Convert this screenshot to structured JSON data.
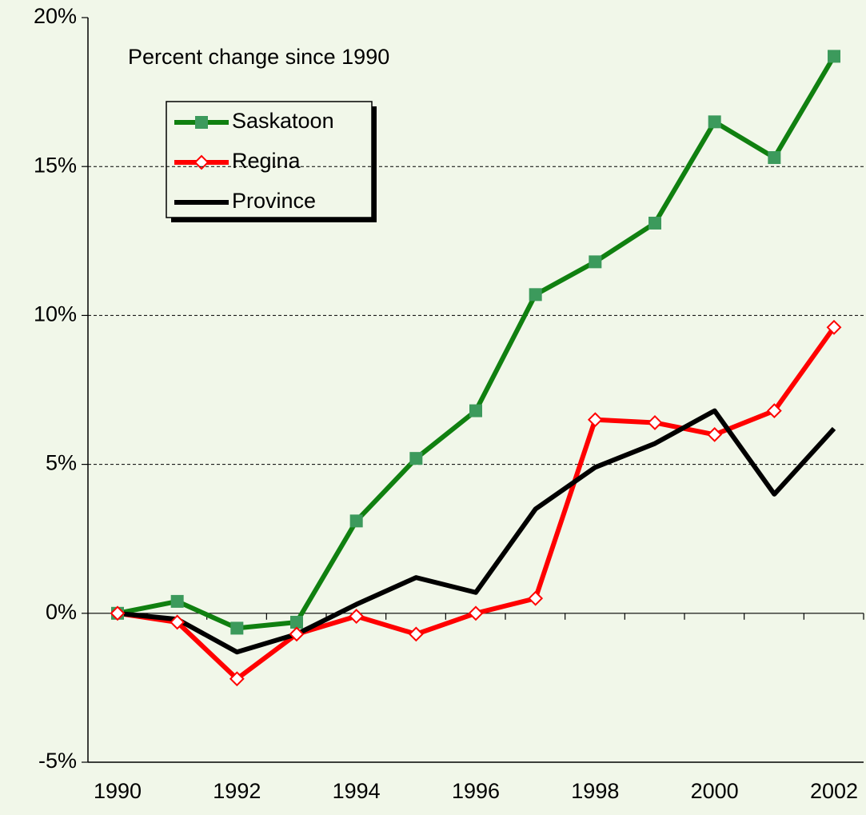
{
  "chart_data": {
    "type": "line",
    "annotation": "Percent change since 1990",
    "x": [
      1990,
      1991,
      1992,
      1993,
      1994,
      1995,
      1996,
      1997,
      1998,
      1999,
      2000,
      2001,
      2002
    ],
    "series": [
      {
        "name": "Saskatoon",
        "color": "#108010",
        "marker": "square",
        "marker_color": "#3c9a5c",
        "values": [
          0,
          0.4,
          -0.5,
          -0.3,
          3.1,
          5.2,
          6.8,
          10.7,
          11.8,
          13.1,
          16.5,
          15.3,
          18.7
        ]
      },
      {
        "name": "Regina",
        "color": "#ff0000",
        "marker": "diamond",
        "marker_color": "#ffffff",
        "values": [
          0,
          -0.3,
          -2.2,
          -0.7,
          -0.1,
          -0.7,
          0,
          0.5,
          6.5,
          6.4,
          6.0,
          6.8,
          9.6
        ]
      },
      {
        "name": "Province",
        "color": "#000000",
        "marker": "none",
        "marker_color": "#000000",
        "values": [
          0,
          -0.2,
          -1.3,
          -0.7,
          0.3,
          1.2,
          0.7,
          3.5,
          4.9,
          5.7,
          6.8,
          4.0,
          6.2
        ]
      }
    ],
    "xlim": [
      1990,
      2002
    ],
    "xticks": [
      1990,
      1992,
      1994,
      1996,
      1998,
      2000,
      2002
    ],
    "ylim": [
      -5,
      20
    ],
    "yticks": [
      {
        "value": -5,
        "label": "-5%"
      },
      {
        "value": 0,
        "label": "0%"
      },
      {
        "value": 5,
        "label": "5%"
      },
      {
        "value": 10,
        "label": "10%"
      },
      {
        "value": 15,
        "label": "15%"
      },
      {
        "value": 20,
        "label": "20%"
      }
    ],
    "grid": true
  }
}
